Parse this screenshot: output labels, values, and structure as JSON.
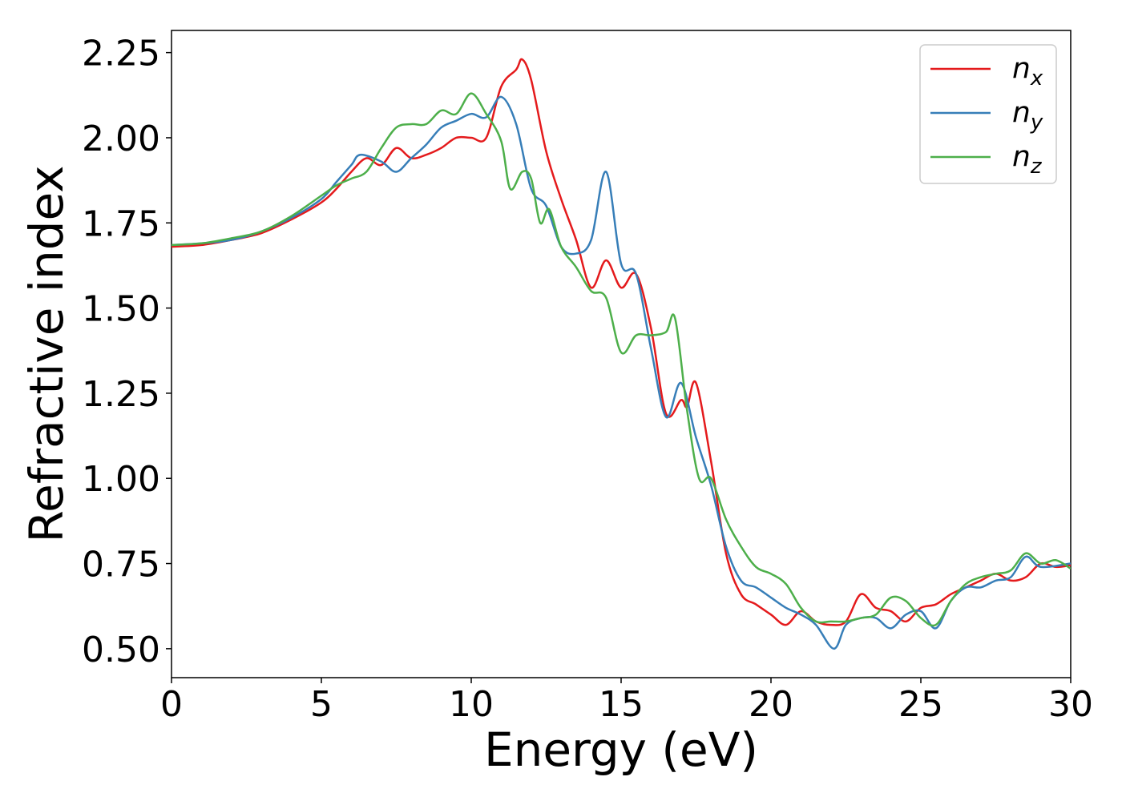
{
  "chart_data": {
    "type": "line",
    "xlabel": "Energy (eV)",
    "ylabel": "Refractive index",
    "xlim": [
      0,
      30
    ],
    "ylim": [
      0.415,
      2.315
    ],
    "x_ticks": [
      "0",
      "5",
      "10",
      "15",
      "20",
      "25",
      "30"
    ],
    "y_ticks": [
      "0.50",
      "0.75",
      "1.00",
      "1.25",
      "1.50",
      "1.75",
      "2.00",
      "2.25"
    ],
    "grid": false,
    "legend_position": "top-right",
    "series": [
      {
        "name": "n_x",
        "legend_base": "n",
        "legend_sub": "x",
        "color": "#e41a1c",
        "points": [
          [
            0,
            1.68
          ],
          [
            1,
            1.685
          ],
          [
            2,
            1.7
          ],
          [
            3,
            1.72
          ],
          [
            4,
            1.76
          ],
          [
            5,
            1.81
          ],
          [
            5.5,
            1.85
          ],
          [
            6,
            1.9
          ],
          [
            6.5,
            1.94
          ],
          [
            7,
            1.92
          ],
          [
            7.5,
            1.97
          ],
          [
            8,
            1.94
          ],
          [
            8.5,
            1.95
          ],
          [
            9,
            1.97
          ],
          [
            9.5,
            2.0
          ],
          [
            10,
            2.0
          ],
          [
            10.5,
            2.0
          ],
          [
            11,
            2.15
          ],
          [
            11.5,
            2.2
          ],
          [
            11.7,
            2.23
          ],
          [
            12,
            2.17
          ],
          [
            12.5,
            1.96
          ],
          [
            13,
            1.82
          ],
          [
            13.5,
            1.7
          ],
          [
            14,
            1.56
          ],
          [
            14.5,
            1.64
          ],
          [
            15,
            1.56
          ],
          [
            15.5,
            1.6
          ],
          [
            16,
            1.44
          ],
          [
            16.5,
            1.19
          ],
          [
            17,
            1.23
          ],
          [
            17.2,
            1.21
          ],
          [
            17.5,
            1.28
          ],
          [
            18,
            1.05
          ],
          [
            18.5,
            0.78
          ],
          [
            19,
            0.66
          ],
          [
            19.5,
            0.63
          ],
          [
            20,
            0.6
          ],
          [
            20.5,
            0.57
          ],
          [
            21,
            0.61
          ],
          [
            21.5,
            0.58
          ],
          [
            22,
            0.57
          ],
          [
            22.5,
            0.58
          ],
          [
            23,
            0.66
          ],
          [
            23.5,
            0.62
          ],
          [
            24,
            0.61
          ],
          [
            24.5,
            0.58
          ],
          [
            25,
            0.62
          ],
          [
            25.5,
            0.63
          ],
          [
            26,
            0.66
          ],
          [
            26.5,
            0.68
          ],
          [
            27,
            0.7
          ],
          [
            27.5,
            0.72
          ],
          [
            28,
            0.7
          ],
          [
            28.5,
            0.71
          ],
          [
            29,
            0.75
          ],
          [
            29.5,
            0.74
          ],
          [
            30,
            0.745
          ]
        ]
      },
      {
        "name": "n_y",
        "legend_base": "n",
        "legend_sub": "y",
        "color": "#377eb8",
        "points": [
          [
            0,
            1.685
          ],
          [
            1,
            1.69
          ],
          [
            2,
            1.7
          ],
          [
            3,
            1.725
          ],
          [
            4,
            1.765
          ],
          [
            5,
            1.82
          ],
          [
            5.5,
            1.87
          ],
          [
            6,
            1.92
          ],
          [
            6.3,
            1.95
          ],
          [
            7,
            1.93
          ],
          [
            7.5,
            1.9
          ],
          [
            8,
            1.94
          ],
          [
            8.5,
            1.98
          ],
          [
            9,
            2.03
          ],
          [
            9.5,
            2.05
          ],
          [
            10,
            2.07
          ],
          [
            10.5,
            2.06
          ],
          [
            11,
            2.12
          ],
          [
            11.5,
            2.04
          ],
          [
            12,
            1.85
          ],
          [
            12.5,
            1.8
          ],
          [
            13,
            1.68
          ],
          [
            13.5,
            1.66
          ],
          [
            14,
            1.7
          ],
          [
            14.5,
            1.9
          ],
          [
            15,
            1.63
          ],
          [
            15.5,
            1.6
          ],
          [
            16,
            1.38
          ],
          [
            16.5,
            1.18
          ],
          [
            17,
            1.28
          ],
          [
            17.5,
            1.12
          ],
          [
            18,
            0.98
          ],
          [
            18.5,
            0.8
          ],
          [
            19,
            0.7
          ],
          [
            19.5,
            0.68
          ],
          [
            20,
            0.65
          ],
          [
            20.5,
            0.62
          ],
          [
            21,
            0.6
          ],
          [
            21.5,
            0.57
          ],
          [
            22.1,
            0.5
          ],
          [
            22.5,
            0.57
          ],
          [
            23,
            0.59
          ],
          [
            23.5,
            0.59
          ],
          [
            24,
            0.56
          ],
          [
            24.5,
            0.6
          ],
          [
            25,
            0.61
          ],
          [
            25.5,
            0.56
          ],
          [
            26,
            0.64
          ],
          [
            26.5,
            0.68
          ],
          [
            27,
            0.68
          ],
          [
            27.5,
            0.7
          ],
          [
            28,
            0.71
          ],
          [
            28.5,
            0.77
          ],
          [
            29,
            0.74
          ],
          [
            30,
            0.75
          ]
        ]
      },
      {
        "name": "n_z",
        "legend_base": "n",
        "legend_sub": "z",
        "color": "#4daf4a",
        "points": [
          [
            0,
            1.685
          ],
          [
            1,
            1.69
          ],
          [
            2,
            1.705
          ],
          [
            3,
            1.725
          ],
          [
            4,
            1.77
          ],
          [
            5,
            1.83
          ],
          [
            5.5,
            1.86
          ],
          [
            6,
            1.88
          ],
          [
            6.5,
            1.9
          ],
          [
            7,
            1.97
          ],
          [
            7.5,
            2.03
          ],
          [
            8,
            2.04
          ],
          [
            8.5,
            2.04
          ],
          [
            9,
            2.08
          ],
          [
            9.5,
            2.07
          ],
          [
            10,
            2.13
          ],
          [
            10.5,
            2.07
          ],
          [
            11,
            1.99
          ],
          [
            11.3,
            1.85
          ],
          [
            11.7,
            1.9
          ],
          [
            12,
            1.88
          ],
          [
            12.3,
            1.75
          ],
          [
            12.6,
            1.79
          ],
          [
            13,
            1.68
          ],
          [
            13.5,
            1.62
          ],
          [
            14,
            1.55
          ],
          [
            14.5,
            1.53
          ],
          [
            15,
            1.37
          ],
          [
            15.5,
            1.42
          ],
          [
            16,
            1.42
          ],
          [
            16.5,
            1.43
          ],
          [
            16.8,
            1.47
          ],
          [
            17.2,
            1.2
          ],
          [
            17.6,
            1.0
          ],
          [
            18,
            1.0
          ],
          [
            18.5,
            0.88
          ],
          [
            19,
            0.8
          ],
          [
            19.5,
            0.74
          ],
          [
            20,
            0.72
          ],
          [
            20.5,
            0.69
          ],
          [
            21,
            0.62
          ],
          [
            21.5,
            0.58
          ],
          [
            22,
            0.58
          ],
          [
            22.5,
            0.58
          ],
          [
            23,
            0.59
          ],
          [
            23.5,
            0.6
          ],
          [
            24,
            0.65
          ],
          [
            24.5,
            0.64
          ],
          [
            25,
            0.59
          ],
          [
            25.5,
            0.57
          ],
          [
            26,
            0.64
          ],
          [
            26.5,
            0.69
          ],
          [
            27,
            0.71
          ],
          [
            27.5,
            0.72
          ],
          [
            28,
            0.73
          ],
          [
            28.5,
            0.78
          ],
          [
            29,
            0.75
          ],
          [
            29.5,
            0.76
          ],
          [
            30,
            0.735
          ]
        ]
      }
    ]
  }
}
